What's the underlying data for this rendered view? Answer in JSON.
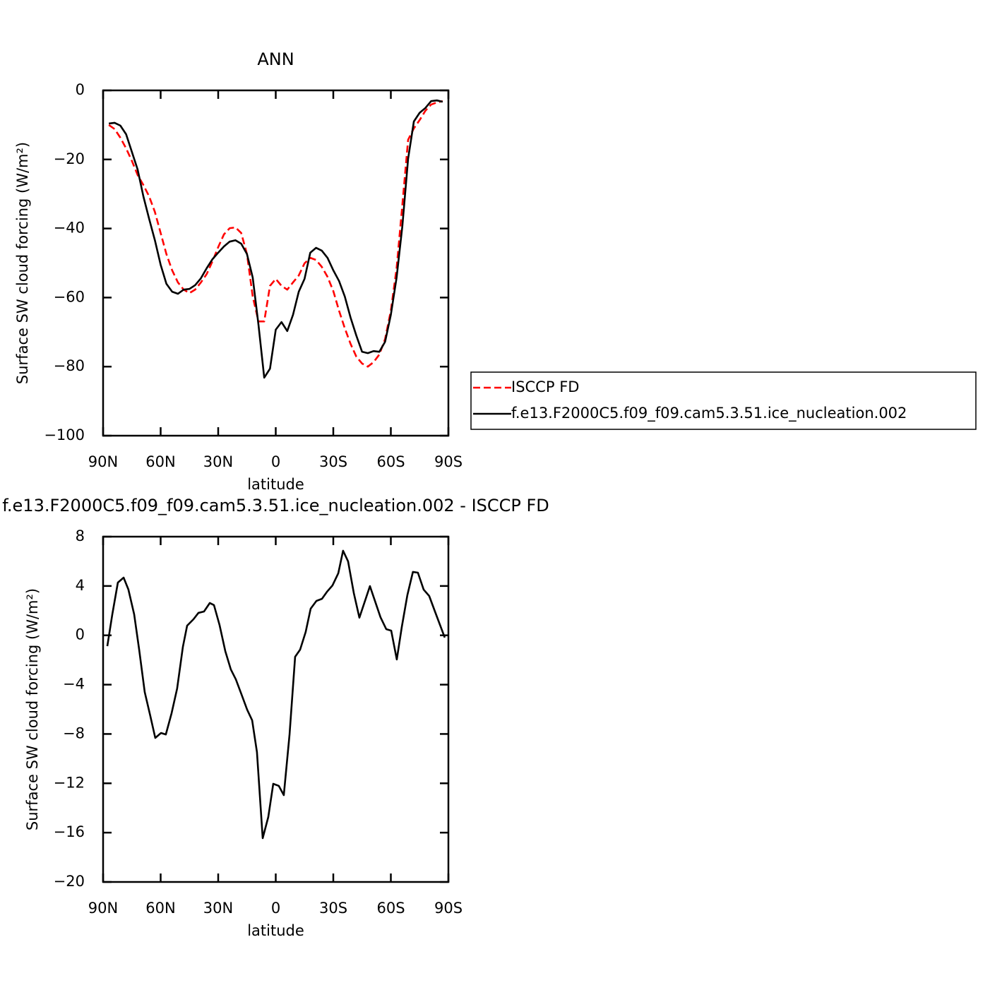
{
  "chart_data": [
    {
      "type": "line",
      "title": "ANN",
      "xlabel": "latitude",
      "ylabel": "Surface SW cloud forcing (W/m²)",
      "x": [
        87,
        84,
        81,
        78,
        75,
        72,
        69,
        66,
        63,
        60,
        57,
        54,
        51,
        48,
        45,
        42,
        39,
        36,
        33,
        30,
        27,
        24,
        21,
        18,
        15,
        12,
        9,
        6,
        3,
        0,
        -3,
        -6,
        -9,
        -12,
        -15,
        -18,
        -21,
        -24,
        -27,
        -30,
        -33,
        -36,
        -39,
        -42,
        -45,
        -48,
        -51,
        -54,
        -57,
        -60,
        -63,
        -66,
        -69,
        -72,
        -75,
        -78,
        -81,
        -84,
        -87
      ],
      "series": [
        {
          "name": "ISCCP FD",
          "color": "#ff0000",
          "style": "dashed",
          "values": [
            -10.0,
            -11.2,
            -13.7,
            -16.8,
            -20.4,
            -24.5,
            -27.4,
            -30.7,
            -35.2,
            -41.3,
            -47.4,
            -52.1,
            -55.6,
            -57.7,
            -58.7,
            -57.7,
            -55.6,
            -53.2,
            -49.5,
            -45.4,
            -41.7,
            -39.9,
            -39.7,
            -41.3,
            -47.4,
            -59.7,
            -66.9,
            -66.9,
            -56.6,
            -54.6,
            -56.6,
            -57.7,
            -55.6,
            -53.6,
            -50.1,
            -48.5,
            -49.1,
            -51.1,
            -54.0,
            -58.1,
            -63.8,
            -68.9,
            -73.4,
            -77.1,
            -79.1,
            -80.0,
            -78.7,
            -76.5,
            -72.0,
            -63.8,
            -51.5,
            -33.1,
            -14.3,
            -11.0,
            -8.6,
            -5.9,
            -4.1,
            -3.5,
            -3.1
          ]
        },
        {
          "name": "f.e13.F2000C5.f09_f09.cam5.3.51.ice_nucleation.002",
          "color": "#000000",
          "style": "solid",
          "values": [
            -9.6,
            -9.4,
            -10.2,
            -12.7,
            -17.8,
            -22.9,
            -30.7,
            -37.2,
            -43.4,
            -50.5,
            -56.0,
            -58.3,
            -58.9,
            -57.7,
            -57.5,
            -56.4,
            -54.4,
            -51.5,
            -48.9,
            -47.0,
            -45.2,
            -43.8,
            -43.4,
            -44.4,
            -47.4,
            -54.2,
            -67.9,
            -83.2,
            -80.6,
            -69.3,
            -67.1,
            -69.7,
            -65.0,
            -58.3,
            -54.6,
            -47.0,
            -45.6,
            -46.4,
            -48.5,
            -52.1,
            -55.2,
            -59.7,
            -65.8,
            -71.0,
            -75.7,
            -76.1,
            -75.5,
            -75.7,
            -72.8,
            -65.0,
            -54.2,
            -39.3,
            -19.8,
            -9.0,
            -6.5,
            -5.1,
            -3.1,
            -2.9,
            -3.3
          ]
        }
      ],
      "xlim": [
        90,
        -90
      ],
      "xticks": [
        {
          "value": 90,
          "label": "90N"
        },
        {
          "value": 60,
          "label": "60N"
        },
        {
          "value": 30,
          "label": "30N"
        },
        0,
        {
          "value": -30,
          "label": "30S"
        },
        {
          "value": -60,
          "label": "60S"
        },
        {
          "value": -90,
          "label": "90S"
        }
      ],
      "ylim": [
        -100,
        0
      ],
      "yticks": [
        0,
        {
          "value": -20,
          "label": "−20"
        },
        {
          "value": -40,
          "label": "−40"
        },
        {
          "value": -60,
          "label": "−60"
        },
        {
          "value": -80,
          "label": "−80"
        },
        {
          "value": -100,
          "label": "−100"
        }
      ],
      "legend": "right"
    },
    {
      "type": "line",
      "title": "f.e13.F2000C5.f09_f09.cam5.3.51.ice_nucleation.002 - ISCCP FD",
      "xlabel": "latitude",
      "ylabel": "Surface SW cloud forcing (W/m²)",
      "x": [
        87.8,
        85.2,
        82.3,
        79.3,
        76.8,
        73.8,
        71.2,
        68.3,
        65.3,
        62.8,
        59.8,
        57.3,
        54.3,
        51.4,
        48.4,
        46.2,
        42.9,
        40.3,
        37.4,
        34.4,
        32.2,
        29.3,
        26.3,
        23.4,
        20.8,
        17.9,
        14.9,
        12.3,
        9.8,
        6.8,
        3.9,
        1.3,
        -1.6,
        -4.2,
        -7.2,
        -10.1,
        -12.7,
        -15.6,
        -18.2,
        -21.2,
        -24.1,
        -26.7,
        -29.6,
        -32.6,
        -35.1,
        -37.7,
        -40.7,
        -43.6,
        -49.1,
        -54.6,
        -57.6,
        -60.2,
        -63.1,
        -65.7,
        -68.6,
        -71.5,
        -74.1,
        -77.1,
        -80.0,
        -83.0,
        -88.1
      ],
      "series": [
        {
          "color": "#000000",
          "style": "solid",
          "values": [
            -0.88,
            1.7,
            4.28,
            4.68,
            3.71,
            1.7,
            -1.16,
            -4.6,
            -6.6,
            -8.32,
            -7.92,
            -8.04,
            -6.32,
            -4.31,
            -0.93,
            0.78,
            1.3,
            1.82,
            1.93,
            2.62,
            2.45,
            0.84,
            -1.28,
            -2.77,
            -3.57,
            -4.77,
            -6.03,
            -6.89,
            -9.47,
            -16.45,
            -14.74,
            -12.04,
            -12.21,
            -12.96,
            -8.03,
            -1.74,
            -1.16,
            0.27,
            2.16,
            2.79,
            2.96,
            3.53,
            4.05,
            5.03,
            6.86,
            6.0,
            3.42,
            1.43,
            3.99,
            1.47,
            0.5,
            0.38,
            -1.96,
            0.67,
            3.25,
            5.14,
            5.08,
            3.71,
            3.19,
            1.93,
            -0.18
          ]
        }
      ],
      "xlim": [
        90,
        -90
      ],
      "xticks": [
        {
          "value": 90,
          "label": "90N"
        },
        {
          "value": 60,
          "label": "60N"
        },
        {
          "value": 30,
          "label": "30N"
        },
        0,
        {
          "value": -30,
          "label": "30S"
        },
        {
          "value": -60,
          "label": "60S"
        },
        {
          "value": -90,
          "label": "90S"
        }
      ],
      "ylim": [
        -20,
        8
      ],
      "yticks": [
        8,
        4,
        0,
        {
          "value": -4,
          "label": "−4"
        },
        {
          "value": -8,
          "label": "−8"
        },
        {
          "value": -12,
          "label": "−12"
        },
        {
          "value": -16,
          "label": "−16"
        },
        {
          "value": -20,
          "label": "−20"
        }
      ]
    }
  ]
}
